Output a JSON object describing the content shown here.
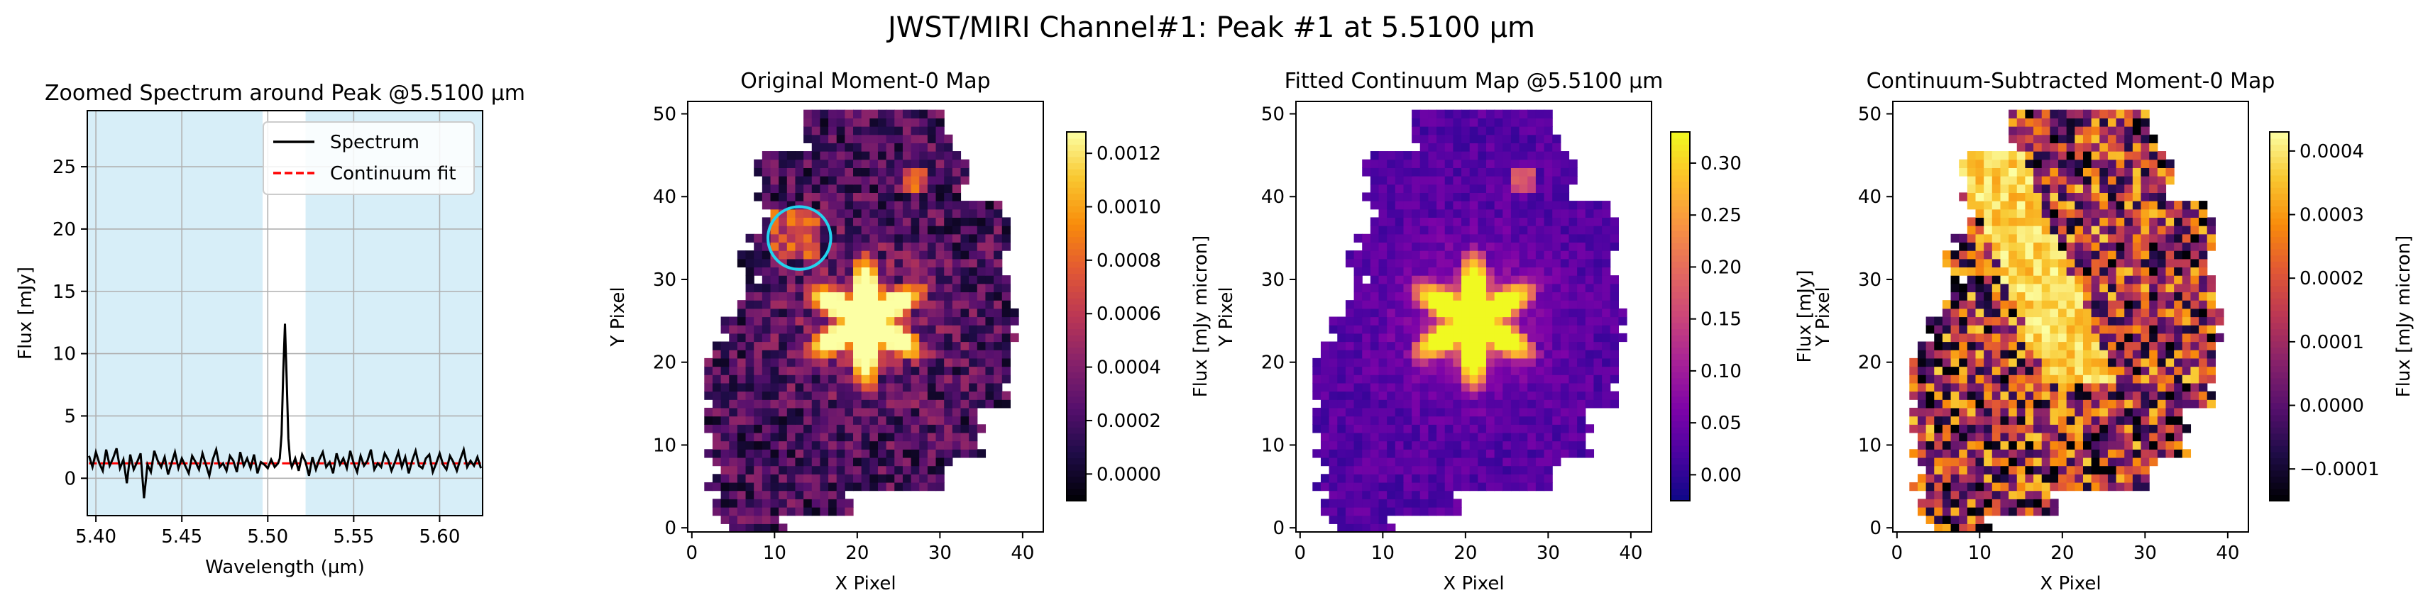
{
  "figure": {
    "suptitle": "JWST/MIRI Channel#1: Peak #1 at 5.5100 µm"
  },
  "chart_data": [
    {
      "type": "line",
      "title": "Zoomed Spectrum around Peak @5.5100 µm",
      "xlabel": "Wavelength (µm)",
      "ylabel": "Flux [mJy]",
      "xlim": [
        5.395,
        5.625
      ],
      "ylim": [
        -3,
        29.5
      ],
      "xticks": [
        "5.40",
        "5.45",
        "5.50",
        "5.55",
        "5.60"
      ],
      "yticks": [
        "0",
        "5",
        "10",
        "15",
        "20",
        "25"
      ],
      "grid": true,
      "legend": {
        "position": "top-right",
        "entries": [
          "Spectrum",
          "Continuum fit"
        ]
      },
      "shaded_regions": [
        [
          5.395,
          5.497
        ],
        [
          5.522,
          5.625
        ]
      ],
      "shade_color": "#d7eef8",
      "series": [
        {
          "name": "Spectrum",
          "color": "#000000",
          "style": "solid",
          "x": [
            5.396,
            5.398,
            5.4,
            5.402,
            5.404,
            5.406,
            5.408,
            5.41,
            5.412,
            5.414,
            5.416,
            5.418,
            5.42,
            5.422,
            5.424,
            5.426,
            5.428,
            5.43,
            5.432,
            5.434,
            5.436,
            5.438,
            5.44,
            5.442,
            5.444,
            5.446,
            5.448,
            5.45,
            5.452,
            5.454,
            5.456,
            5.458,
            5.46,
            5.462,
            5.464,
            5.466,
            5.468,
            5.47,
            5.472,
            5.474,
            5.476,
            5.478,
            5.48,
            5.482,
            5.484,
            5.486,
            5.488,
            5.49,
            5.492,
            5.494,
            5.496,
            5.498,
            5.5,
            5.502,
            5.504,
            5.506,
            5.507,
            5.508,
            5.509,
            5.51,
            5.511,
            5.512,
            5.513,
            5.514,
            5.516,
            5.518,
            5.52,
            5.522,
            5.524,
            5.526,
            5.528,
            5.53,
            5.532,
            5.534,
            5.536,
            5.538,
            5.54,
            5.542,
            5.544,
            5.546,
            5.548,
            5.55,
            5.552,
            5.554,
            5.556,
            5.558,
            5.56,
            5.562,
            5.564,
            5.566,
            5.568,
            5.57,
            5.572,
            5.574,
            5.576,
            5.578,
            5.58,
            5.582,
            5.584,
            5.586,
            5.588,
            5.59,
            5.592,
            5.594,
            5.596,
            5.598,
            5.6,
            5.602,
            5.604,
            5.606,
            5.608,
            5.61,
            5.612,
            5.614,
            5.616,
            5.618,
            5.62,
            5.622,
            5.624
          ],
          "y": [
            1.8,
            0.9,
            2.1,
            1.2,
            0.6,
            2.3,
            1.0,
            1.6,
            2.4,
            0.8,
            1.5,
            -0.4,
            1.9,
            0.7,
            1.3,
            2.0,
            -1.6,
            1.1,
            0.5,
            2.2,
            1.4,
            0.9,
            1.7,
            0.3,
            1.2,
            2.1,
            0.8,
            1.6,
            1.0,
            0.4,
            1.8,
            1.3,
            0.7,
            2.0,
            1.1,
            0.2,
            1.5,
            2.3,
            0.9,
            1.2,
            0.6,
            1.8,
            1.4,
            0.5,
            2.1,
            1.0,
            1.6,
            0.8,
            1.9,
            0.4,
            1.3,
            1.1,
            0.8,
            1.5,
            0.9,
            1.2,
            1.6,
            3.5,
            8.5,
            12.4,
            8.0,
            3.2,
            1.4,
            0.9,
            1.6,
            0.6,
            1.9,
            1.3,
            0.2,
            1.7,
            0.7,
            1.5,
            2.1,
            0.9,
            1.3,
            0.4,
            2.0,
            1.1,
            1.6,
            0.8,
            2.2,
            1.2,
            0.5,
            1.8,
            1.0,
            1.4,
            2.3,
            0.7,
            1.2,
            0.9,
            2.0,
            1.5,
            0.6,
            1.3,
            2.1,
            0.9,
            1.7,
            0.4,
            1.4,
            2.2,
            1.0,
            0.8,
            1.6,
            1.9,
            0.5,
            1.2,
            2.0,
            1.1,
            0.7,
            1.8,
            1.3,
            0.6,
            1.5,
            2.3,
            0.9,
            1.4,
            1.0,
            1.7,
            0.8
          ]
        },
        {
          "name": "Continuum fit",
          "color": "#ff0000",
          "style": "dashed",
          "x": [
            5.396,
            5.624
          ],
          "y": [
            1.2,
            1.2
          ]
        }
      ]
    },
    {
      "type": "heatmap",
      "title": "Original Moment-0 Map",
      "xlabel": "X Pixel",
      "ylabel": "Y Pixel",
      "xlim": [
        -0.5,
        42.5
      ],
      "ylim": [
        -0.5,
        51.5
      ],
      "xticks": [
        "0",
        "10",
        "20",
        "30",
        "40"
      ],
      "yticks": [
        "0",
        "10",
        "20",
        "30",
        "40",
        "50"
      ],
      "colormap": "inferno",
      "colorbar": {
        "label": "Flux [mJy micron]",
        "min": -0.0001,
        "max": 0.00128,
        "ticks": [
          "0.0000",
          "0.0002",
          "0.0004",
          "0.0006",
          "0.0008",
          "0.0010",
          "0.0012"
        ],
        "tick_values": [
          0,
          0.0002,
          0.0004,
          0.0006,
          0.0008,
          0.001,
          0.0012
        ]
      },
      "annotation": {
        "shape": "circle",
        "center": [
          13,
          35
        ],
        "radius": 3.8,
        "color": "#22d3ee"
      },
      "peak_value": 0.00128,
      "background_value": 0.00018
    },
    {
      "type": "heatmap",
      "title": "Fitted Continuum Map @5.5100 µm",
      "xlabel": "X Pixel",
      "ylabel": "Y Pixel",
      "xlim": [
        -0.5,
        42.5
      ],
      "ylim": [
        -0.5,
        51.5
      ],
      "xticks": [
        "0",
        "10",
        "20",
        "30",
        "40"
      ],
      "yticks": [
        "0",
        "10",
        "20",
        "30",
        "40",
        "50"
      ],
      "colormap": "plasma",
      "colorbar": {
        "label": "Flux [mJy]",
        "min": -0.025,
        "max": 0.33,
        "ticks": [
          "0.00",
          "0.05",
          "0.10",
          "0.15",
          "0.20",
          "0.25",
          "0.30"
        ],
        "tick_values": [
          0,
          0.05,
          0.1,
          0.15,
          0.2,
          0.25,
          0.3
        ]
      },
      "peak_value": 0.33,
      "background_value": 0.03
    },
    {
      "type": "heatmap",
      "title": "Continuum-Subtracted Moment-0 Map",
      "xlabel": "X Pixel",
      "ylabel": "Y Pixel",
      "xlim": [
        -0.5,
        42.5
      ],
      "ylim": [
        -0.5,
        51.5
      ],
      "xticks": [
        "0",
        "10",
        "20",
        "30",
        "40"
      ],
      "yticks": [
        "0",
        "10",
        "20",
        "30",
        "40",
        "50"
      ],
      "colormap": "inferno",
      "colorbar": {
        "label": "Flux [mJy micron]",
        "min": -0.00015,
        "max": 0.00043,
        "ticks": [
          "−0.0001",
          "0.0000",
          "0.0001",
          "0.0002",
          "0.0003",
          "0.0004"
        ],
        "tick_values": [
          -0.0001,
          0,
          0.0001,
          0.0002,
          0.0003,
          0.0004
        ]
      },
      "peak_value": 0.00043,
      "background_value": 0.0001
    }
  ]
}
